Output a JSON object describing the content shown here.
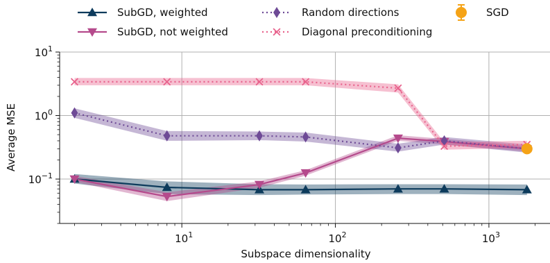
{
  "chart_data": {
    "type": "line",
    "title": "",
    "xlabel": "Subspace dimensionality",
    "ylabel": "Average MSE",
    "xscale": "log",
    "yscale": "log",
    "xlim": [
      1.6,
      2500
    ],
    "ylim": [
      0.02,
      10
    ],
    "x_ticks": [
      {
        "value": 10,
        "base": "10",
        "exp": "1"
      },
      {
        "value": 100,
        "base": "10",
        "exp": "2"
      },
      {
        "value": 1000,
        "base": "10",
        "exp": "3"
      }
    ],
    "y_ticks": [
      {
        "value": 0.1,
        "base": "10",
        "exp": "−1"
      },
      {
        "value": 1,
        "base": "10",
        "exp": "0"
      },
      {
        "value": 10,
        "base": "10",
        "exp": "1"
      }
    ],
    "grid": true,
    "legend_position": "top (above plot)",
    "series": [
      {
        "name": "SubGD, weighted",
        "color": "#0d3b5c",
        "marker": "triangle-up",
        "linestyle": "solid",
        "x": [
          2,
          8,
          32,
          64,
          256,
          512,
          1770
        ],
        "y": [
          0.1,
          0.074,
          0.068,
          0.068,
          0.07,
          0.07,
          0.068
        ],
        "lower": [
          0.085,
          0.058,
          0.056,
          0.057,
          0.058,
          0.058,
          0.056
        ],
        "upper": [
          0.12,
          0.092,
          0.083,
          0.082,
          0.083,
          0.083,
          0.082
        ]
      },
      {
        "name": "SubGD, not weighted",
        "color": "#b54a8c",
        "marker": "triangle-down",
        "linestyle": "solid",
        "x": [
          2,
          8,
          32,
          64,
          256,
          512,
          1770
        ],
        "y": [
          0.1,
          0.053,
          0.082,
          0.125,
          0.44,
          0.39,
          0.3
        ],
        "lower": [
          0.09,
          0.045,
          0.073,
          0.113,
          0.4,
          0.35,
          0.27
        ],
        "upper": [
          0.112,
          0.062,
          0.092,
          0.138,
          0.49,
          0.43,
          0.33
        ]
      },
      {
        "name": "Random directions",
        "color": "#6e4a96",
        "marker": "diamond",
        "linestyle": "dotted",
        "x": [
          2,
          8,
          32,
          64,
          256,
          512,
          1770
        ],
        "y": [
          1.1,
          0.48,
          0.48,
          0.46,
          0.31,
          0.4,
          0.3
        ],
        "lower": [
          0.92,
          0.4,
          0.41,
          0.39,
          0.27,
          0.35,
          0.26
        ],
        "upper": [
          1.3,
          0.57,
          0.56,
          0.54,
          0.36,
          0.46,
          0.35
        ]
      },
      {
        "name": "Diagonal preconditioning",
        "color": "#e8628c",
        "marker": "x",
        "linestyle": "dotted",
        "x": [
          2,
          8,
          32,
          64,
          256,
          512,
          1770
        ],
        "y": [
          3.4,
          3.4,
          3.4,
          3.4,
          2.7,
          0.33,
          0.35
        ],
        "lower": [
          3.0,
          3.0,
          3.0,
          3.0,
          2.3,
          0.29,
          0.31
        ],
        "upper": [
          3.9,
          3.9,
          3.9,
          3.9,
          3.1,
          0.38,
          0.4
        ]
      },
      {
        "name": "SGD",
        "color": "#f5a316",
        "marker": "circle",
        "linestyle": "none",
        "x": [
          1770
        ],
        "y": [
          0.3
        ],
        "yerr_low": [
          0.27
        ],
        "yerr_high": [
          0.34
        ]
      }
    ],
    "legend_order": [
      0,
      1,
      2,
      3,
      4
    ]
  }
}
